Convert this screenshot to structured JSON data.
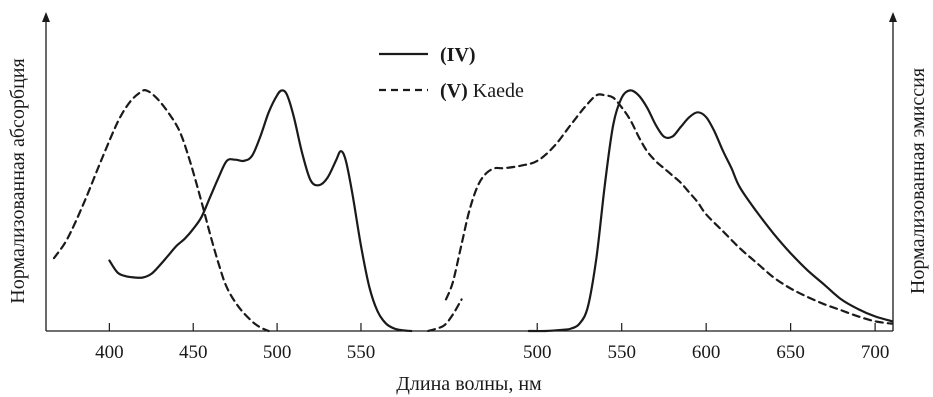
{
  "chart_data": {
    "type": "line",
    "xlabel": "Длина волны, нм",
    "ylabel_left": "Нормализованная абсорбция",
    "ylabel_right": "Нормализованная эмиссия",
    "legend": {
      "placement": "top-center",
      "entries": [
        {
          "bold": "(IV)",
          "rest": "",
          "style": "solid"
        },
        {
          "bold": "(V)",
          "rest": " Kaede",
          "style": "dashed"
        }
      ]
    },
    "panels": [
      {
        "name": "absorption",
        "xlim": [
          367,
          615
        ],
        "ylim": [
          0,
          1
        ],
        "ticks": [
          400,
          450,
          500,
          550
        ],
        "tick_labels": [
          "400",
          "450",
          "500",
          "550"
        ],
        "series": [
          {
            "key": "IV",
            "style": "solid",
            "points": [
              [
                400,
                0.29
              ],
              [
                405,
                0.24
              ],
              [
                410,
                0.225
              ],
              [
                415,
                0.22
              ],
              [
                420,
                0.22
              ],
              [
                425,
                0.235
              ],
              [
                430,
                0.27
              ],
              [
                435,
                0.31
              ],
              [
                440,
                0.35
              ],
              [
                445,
                0.38
              ],
              [
                450,
                0.42
              ],
              [
                455,
                0.47
              ],
              [
                460,
                0.55
              ],
              [
                465,
                0.63
              ],
              [
                470,
                0.7
              ],
              [
                475,
                0.705
              ],
              [
                480,
                0.7
              ],
              [
                485,
                0.72
              ],
              [
                490,
                0.8
              ],
              [
                495,
                0.9
              ],
              [
                500,
                0.97
              ],
              [
                503,
                0.99
              ],
              [
                506,
                0.97
              ],
              [
                510,
                0.88
              ],
              [
                515,
                0.73
              ],
              [
                520,
                0.62
              ],
              [
                525,
                0.6
              ],
              [
                530,
                0.63
              ],
              [
                535,
                0.7
              ],
              [
                538,
                0.74
              ],
              [
                541,
                0.7
              ],
              [
                545,
                0.56
              ],
              [
                550,
                0.35
              ],
              [
                555,
                0.18
              ],
              [
                560,
                0.08
              ],
              [
                565,
                0.03
              ],
              [
                570,
                0.01
              ],
              [
                575,
                0.003
              ],
              [
                580,
                0
              ]
            ]
          },
          {
            "key": "V",
            "style": "dashed",
            "points": [
              [
                367,
                0.3
              ],
              [
                375,
                0.38
              ],
              [
                385,
                0.53
              ],
              [
                395,
                0.7
              ],
              [
                405,
                0.86
              ],
              [
                412,
                0.94
              ],
              [
                418,
                0.98
              ],
              [
                422,
                0.99
              ],
              [
                428,
                0.96
              ],
              [
                435,
                0.9
              ],
              [
                442,
                0.82
              ],
              [
                448,
                0.7
              ],
              [
                455,
                0.53
              ],
              [
                460,
                0.4
              ],
              [
                465,
                0.28
              ],
              [
                470,
                0.18
              ],
              [
                477,
                0.1
              ],
              [
                485,
                0.04
              ],
              [
                490,
                0.015
              ],
              [
                495,
                0
              ]
            ]
          },
          {
            "key": "V",
            "style": "dashed",
            "points": [
              [
                590,
                0
              ],
              [
                595,
                0.01
              ],
              [
                600,
                0.025
              ],
              [
                605,
                0.07
              ],
              [
                610,
                0.13
              ]
            ]
          }
        ]
      },
      {
        "name": "emission",
        "xlim": [
          446,
          710
        ],
        "ylim": [
          0,
          1
        ],
        "ticks": [
          500,
          550,
          600,
          650,
          700
        ],
        "tick_labels": [
          "500",
          "550",
          "600",
          "650",
          "700"
        ],
        "series": [
          {
            "key": "V",
            "style": "dashed",
            "points": [
              [
                446,
                0.13
              ],
              [
                450,
                0.2
              ],
              [
                455,
                0.35
              ],
              [
                460,
                0.5
              ],
              [
                465,
                0.6
              ],
              [
                470,
                0.65
              ],
              [
                475,
                0.67
              ],
              [
                480,
                0.67
              ],
              [
                490,
                0.68
              ],
              [
                500,
                0.7
              ],
              [
                510,
                0.76
              ],
              [
                520,
                0.85
              ],
              [
                528,
                0.92
              ],
              [
                535,
                0.97
              ],
              [
                540,
                0.97
              ],
              [
                545,
                0.96
              ],
              [
                550,
                0.92
              ],
              [
                555,
                0.87
              ],
              [
                560,
                0.8
              ],
              [
                565,
                0.74
              ],
              [
                570,
                0.7
              ],
              [
                575,
                0.67
              ],
              [
                580,
                0.64
              ],
              [
                585,
                0.61
              ],
              [
                590,
                0.57
              ],
              [
                595,
                0.53
              ],
              [
                600,
                0.48
              ],
              [
                610,
                0.41
              ],
              [
                620,
                0.34
              ],
              [
                630,
                0.28
              ],
              [
                640,
                0.22
              ],
              [
                650,
                0.175
              ],
              [
                660,
                0.14
              ],
              [
                670,
                0.11
              ],
              [
                680,
                0.085
              ],
              [
                690,
                0.06
              ],
              [
                700,
                0.04
              ],
              [
                710,
                0.03
              ]
            ]
          },
          {
            "key": "IV",
            "style": "solid",
            "points": [
              [
                495,
                0
              ],
              [
                505,
                0
              ],
              [
                515,
                0.005
              ],
              [
                520,
                0.01
              ],
              [
                525,
                0.03
              ],
              [
                530,
                0.1
              ],
              [
                535,
                0.3
              ],
              [
                540,
                0.6
              ],
              [
                545,
                0.85
              ],
              [
                550,
                0.96
              ],
              [
                555,
                0.99
              ],
              [
                560,
                0.97
              ],
              [
                565,
                0.92
              ],
              [
                570,
                0.85
              ],
              [
                575,
                0.8
              ],
              [
                580,
                0.8
              ],
              [
                585,
                0.84
              ],
              [
                590,
                0.88
              ],
              [
                595,
                0.9
              ],
              [
                600,
                0.88
              ],
              [
                605,
                0.82
              ],
              [
                610,
                0.74
              ],
              [
                615,
                0.67
              ],
              [
                620,
                0.59
              ],
              [
                630,
                0.49
              ],
              [
                640,
                0.4
              ],
              [
                650,
                0.32
              ],
              [
                660,
                0.25
              ],
              [
                670,
                0.19
              ],
              [
                680,
                0.13
              ],
              [
                690,
                0.09
              ],
              [
                700,
                0.06
              ],
              [
                710,
                0.04
              ]
            ]
          }
        ]
      }
    ]
  }
}
